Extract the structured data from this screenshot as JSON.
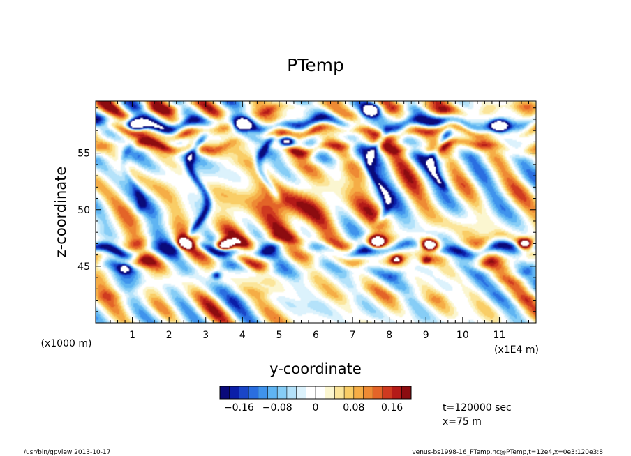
{
  "chart_data": {
    "type": "heatmap",
    "title": "PTemp",
    "xlabel": "y-coordinate",
    "ylabel": "z-coordinate",
    "x_unit": "(x1E4 m)",
    "y_unit": "(x1000 m)",
    "xlim": [
      0,
      12
    ],
    "ylim": [
      40,
      59.6
    ],
    "x_ticks": [
      "1",
      "2",
      "3",
      "4",
      "5",
      "6",
      "7",
      "8",
      "9",
      "10",
      "11"
    ],
    "y_ticks": [
      "45",
      "50",
      "55"
    ],
    "colorbar": {
      "range": [
        -0.2,
        0.2
      ],
      "tick_labels": [
        "−0.16",
        "−0.08",
        "0",
        "0.08",
        "0.16"
      ],
      "tick_values": [
        -0.16,
        -0.08,
        0,
        0.08,
        0.16
      ],
      "colors": [
        "#0a0a7a",
        "#0b1ea8",
        "#1a46c8",
        "#2a6ee0",
        "#3f93ec",
        "#5fb4f2",
        "#86cdf6",
        "#b4e2fa",
        "#dcf2fc",
        "#ffffff",
        "#ffffff",
        "#fbf6d0",
        "#fbe59a",
        "#f9cd66",
        "#f5ad46",
        "#ee8a34",
        "#e36428",
        "#cf3a20",
        "#b41a18",
        "#8c0c10"
      ]
    },
    "features": [
      {
        "kind": "band",
        "z": 57.6,
        "value": -0.17
      },
      {
        "kind": "band",
        "z": 58.9,
        "value": 0.08
      },
      {
        "kind": "band",
        "z": 56.9,
        "value": 0.14
      },
      {
        "kind": "band",
        "z": 55.6,
        "value": 0.13
      },
      {
        "kind": "band",
        "z": 54.6,
        "value": -0.04
      },
      {
        "kind": "band",
        "z": 46.5,
        "value": -0.15
      },
      {
        "kind": "band",
        "z": 47.3,
        "value": 0.06
      },
      {
        "kind": "band",
        "z": 45.6,
        "value": 0.07
      },
      {
        "kind": "band",
        "z": 44.6,
        "value": -0.05
      },
      {
        "kind": "band",
        "z": 42.5,
        "value": 0.03
      },
      {
        "kind": "plume",
        "y": 2.8,
        "z_top": 56.5,
        "z_bottom": 47.5,
        "value": -0.17
      },
      {
        "kind": "plume",
        "y": 4.7,
        "z_top": 56.5,
        "z_bottom": 51.0,
        "value": -0.16
      },
      {
        "kind": "plume",
        "y": 7.7,
        "z_top": 57.0,
        "z_bottom": 49.0,
        "value": -0.15
      },
      {
        "kind": "plume",
        "y": 9.4,
        "z_top": 57.0,
        "z_bottom": 52.0,
        "value": -0.15
      },
      {
        "kind": "plume",
        "y": 1.0,
        "z_top": 56.0,
        "z_bottom": 50.0,
        "value": -0.08
      },
      {
        "kind": "warm-region",
        "y": 5.6,
        "z": 50.5,
        "value": 0.05
      },
      {
        "kind": "warm-region",
        "y": 5.0,
        "z": 49.8,
        "value": 0.09
      },
      {
        "kind": "saturated",
        "y": 2.45,
        "z": 47.0,
        "value": 0.3
      },
      {
        "kind": "saturated",
        "y": 3.5,
        "z": 46.8,
        "value": 0.3
      },
      {
        "kind": "saturated",
        "y": 7.65,
        "z": 47.1,
        "value": 0.3
      },
      {
        "kind": "saturated",
        "y": 9.1,
        "z": 46.9,
        "value": 0.3
      },
      {
        "kind": "saturated",
        "y": 11.7,
        "z": 46.9,
        "value": 0.3
      },
      {
        "kind": "saturated",
        "y": 1.1,
        "z": 57.5,
        "value": -0.3
      },
      {
        "kind": "saturated",
        "y": 4.0,
        "z": 57.5,
        "value": -0.3
      },
      {
        "kind": "saturated",
        "y": 7.5,
        "z": 58.8,
        "value": -0.3
      },
      {
        "kind": "saturated",
        "y": 11.0,
        "z": 57.4,
        "value": -0.3
      },
      {
        "kind": "saturated",
        "y": 5.2,
        "z": 56.0,
        "value": -0.3
      },
      {
        "kind": "spot",
        "y": 0.8,
        "z": 44.8,
        "value": -0.2
      },
      {
        "kind": "spot",
        "y": 3.3,
        "z": 44.2,
        "value": -0.2
      },
      {
        "kind": "spot",
        "y": 8.2,
        "z": 45.6,
        "value": 0.18
      },
      {
        "kind": "spot",
        "y": 9.0,
        "z": 45.5,
        "value": 0.16
      }
    ]
  },
  "annotations": {
    "time": "t=120000 sec",
    "position": "x=75 m",
    "footer_left": "/usr/bin/gpview   2013-10-17",
    "footer_right": "venus-bs1998-16_PTemp.nc@PTemp,t=12e4,x=0e3:120e3:8"
  }
}
